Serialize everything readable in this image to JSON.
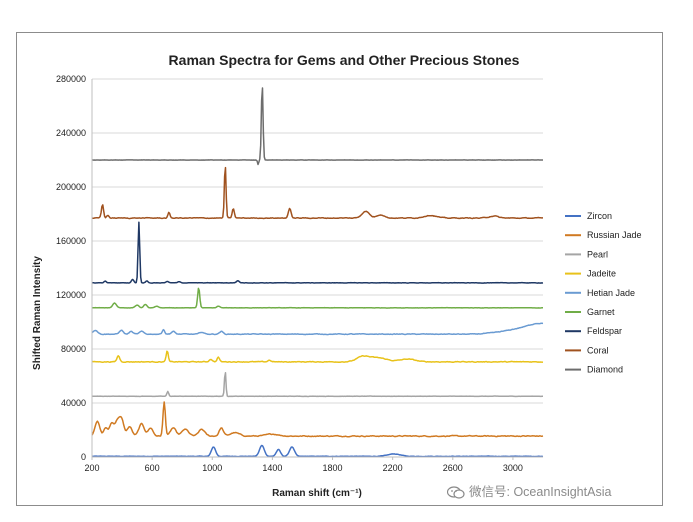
{
  "chart_data": {
    "type": "line",
    "title": "Raman Spectra for Gems and Other Precious Stones",
    "xlabel": "Raman shift (cm⁻¹)",
    "ylabel": "Shifted Raman Intensity",
    "xlim": [
      200,
      3200
    ],
    "ylim": [
      0,
      280000
    ],
    "xticks": [
      200,
      600,
      1000,
      1400,
      1800,
      2200,
      2600,
      3000
    ],
    "yticks": [
      0,
      40000,
      80000,
      120000,
      160000,
      200000,
      240000,
      280000
    ],
    "grid": "horizontal",
    "legend": "right",
    "series": [
      {
        "name": "Zircon",
        "color": "#4472c4",
        "baseline": 500,
        "noise": 350,
        "peaks": [
          [
            1008,
            7000,
            14
          ],
          [
            1330,
            8000,
            16
          ],
          [
            1440,
            5000,
            14
          ],
          [
            1530,
            7000,
            16
          ],
          [
            2210,
            1800,
            40
          ]
        ]
      },
      {
        "name": "Russian Jade",
        "color": "#d07a22",
        "baseline": 15500,
        "noise": 700,
        "peaks": [
          [
            235,
            11000,
            16
          ],
          [
            290,
            6000,
            12
          ],
          [
            330,
            9000,
            15
          ],
          [
            372,
            12000,
            18
          ],
          [
            400,
            9000,
            14
          ],
          [
            450,
            7000,
            16
          ],
          [
            530,
            9000,
            18
          ],
          [
            590,
            6000,
            16
          ],
          [
            680,
            25000,
            8
          ],
          [
            740,
            6000,
            18
          ],
          [
            820,
            5000,
            22
          ],
          [
            930,
            5000,
            20
          ],
          [
            1060,
            6000,
            14
          ],
          [
            1150,
            2500,
            30
          ],
          [
            1400,
            1500,
            40
          ]
        ]
      },
      {
        "name": "Pearl",
        "color": "#a5a5a5",
        "baseline": 45000,
        "noise": 250,
        "peaks": [
          [
            704,
            3500,
            6
          ],
          [
            1086,
            19000,
            5
          ]
        ]
      },
      {
        "name": "Jadeite",
        "color": "#e8c21a",
        "baseline": 70500,
        "noise": 550,
        "peaks": [
          [
            375,
            4500,
            9
          ],
          [
            700,
            8000,
            7
          ],
          [
            990,
            2000,
            10
          ],
          [
            1040,
            3500,
            8
          ],
          [
            1380,
            1200,
            10
          ],
          [
            2000,
            3500,
            40
          ],
          [
            2100,
            3000,
            60
          ],
          [
            2300,
            2000,
            50
          ]
        ]
      },
      {
        "name": "Hetian Jade",
        "color": "#6a9bd2",
        "baseline": 91000,
        "noise": 500,
        "peaks": [
          [
            222,
            3000,
            15
          ],
          [
            395,
            3000,
            12
          ],
          [
            460,
            2000,
            12
          ],
          [
            530,
            2000,
            14
          ],
          [
            675,
            3500,
            8
          ],
          [
            740,
            2000,
            12
          ],
          [
            930,
            1500,
            14
          ],
          [
            1060,
            2000,
            12
          ]
        ],
        "ramp": [
          2700,
          3150,
          8000
        ]
      },
      {
        "name": "Garnet",
        "color": "#70ad47",
        "baseline": 110500,
        "noise": 250,
        "peaks": [
          [
            350,
            3500,
            12
          ],
          [
            500,
            2000,
            12
          ],
          [
            555,
            2500,
            10
          ],
          [
            630,
            1200,
            10
          ],
          [
            910,
            15000,
            7
          ],
          [
            1040,
            1200,
            10
          ]
        ]
      },
      {
        "name": "Feldspar",
        "color": "#1f3864",
        "baseline": 129000,
        "noise": 280,
        "peaks": [
          [
            288,
            1200,
            8
          ],
          [
            470,
            2500,
            8
          ],
          [
            512,
            45000,
            5.5
          ],
          [
            565,
            1500,
            8
          ],
          [
            700,
            1000,
            10
          ],
          [
            780,
            800,
            10
          ],
          [
            1170,
            1500,
            10
          ]
        ]
      },
      {
        "name": "Coral",
        "color": "#a0521f",
        "baseline": 177000,
        "noise": 550,
        "peaks": [
          [
            270,
            10000,
            7
          ],
          [
            305,
            2000,
            8
          ],
          [
            712,
            4000,
            7
          ],
          [
            1086,
            40000,
            5.5
          ],
          [
            1140,
            7000,
            7
          ],
          [
            1515,
            7000,
            9
          ],
          [
            2020,
            5000,
            25
          ],
          [
            2120,
            2500,
            25
          ],
          [
            2450,
            2000,
            40
          ],
          [
            2870,
            1500,
            30
          ]
        ]
      },
      {
        "name": "Diamond",
        "color": "#6d6d6d",
        "baseline": 220000,
        "noise": 140,
        "peaks": [
          [
            1332,
            57000,
            5.5
          ]
        ],
        "dips": [
          [
            1305,
            -3500,
            4
          ]
        ]
      }
    ]
  },
  "watermark": {
    "text": "微信号: OceanInsightAsia",
    "icon": "wechat-icon"
  }
}
